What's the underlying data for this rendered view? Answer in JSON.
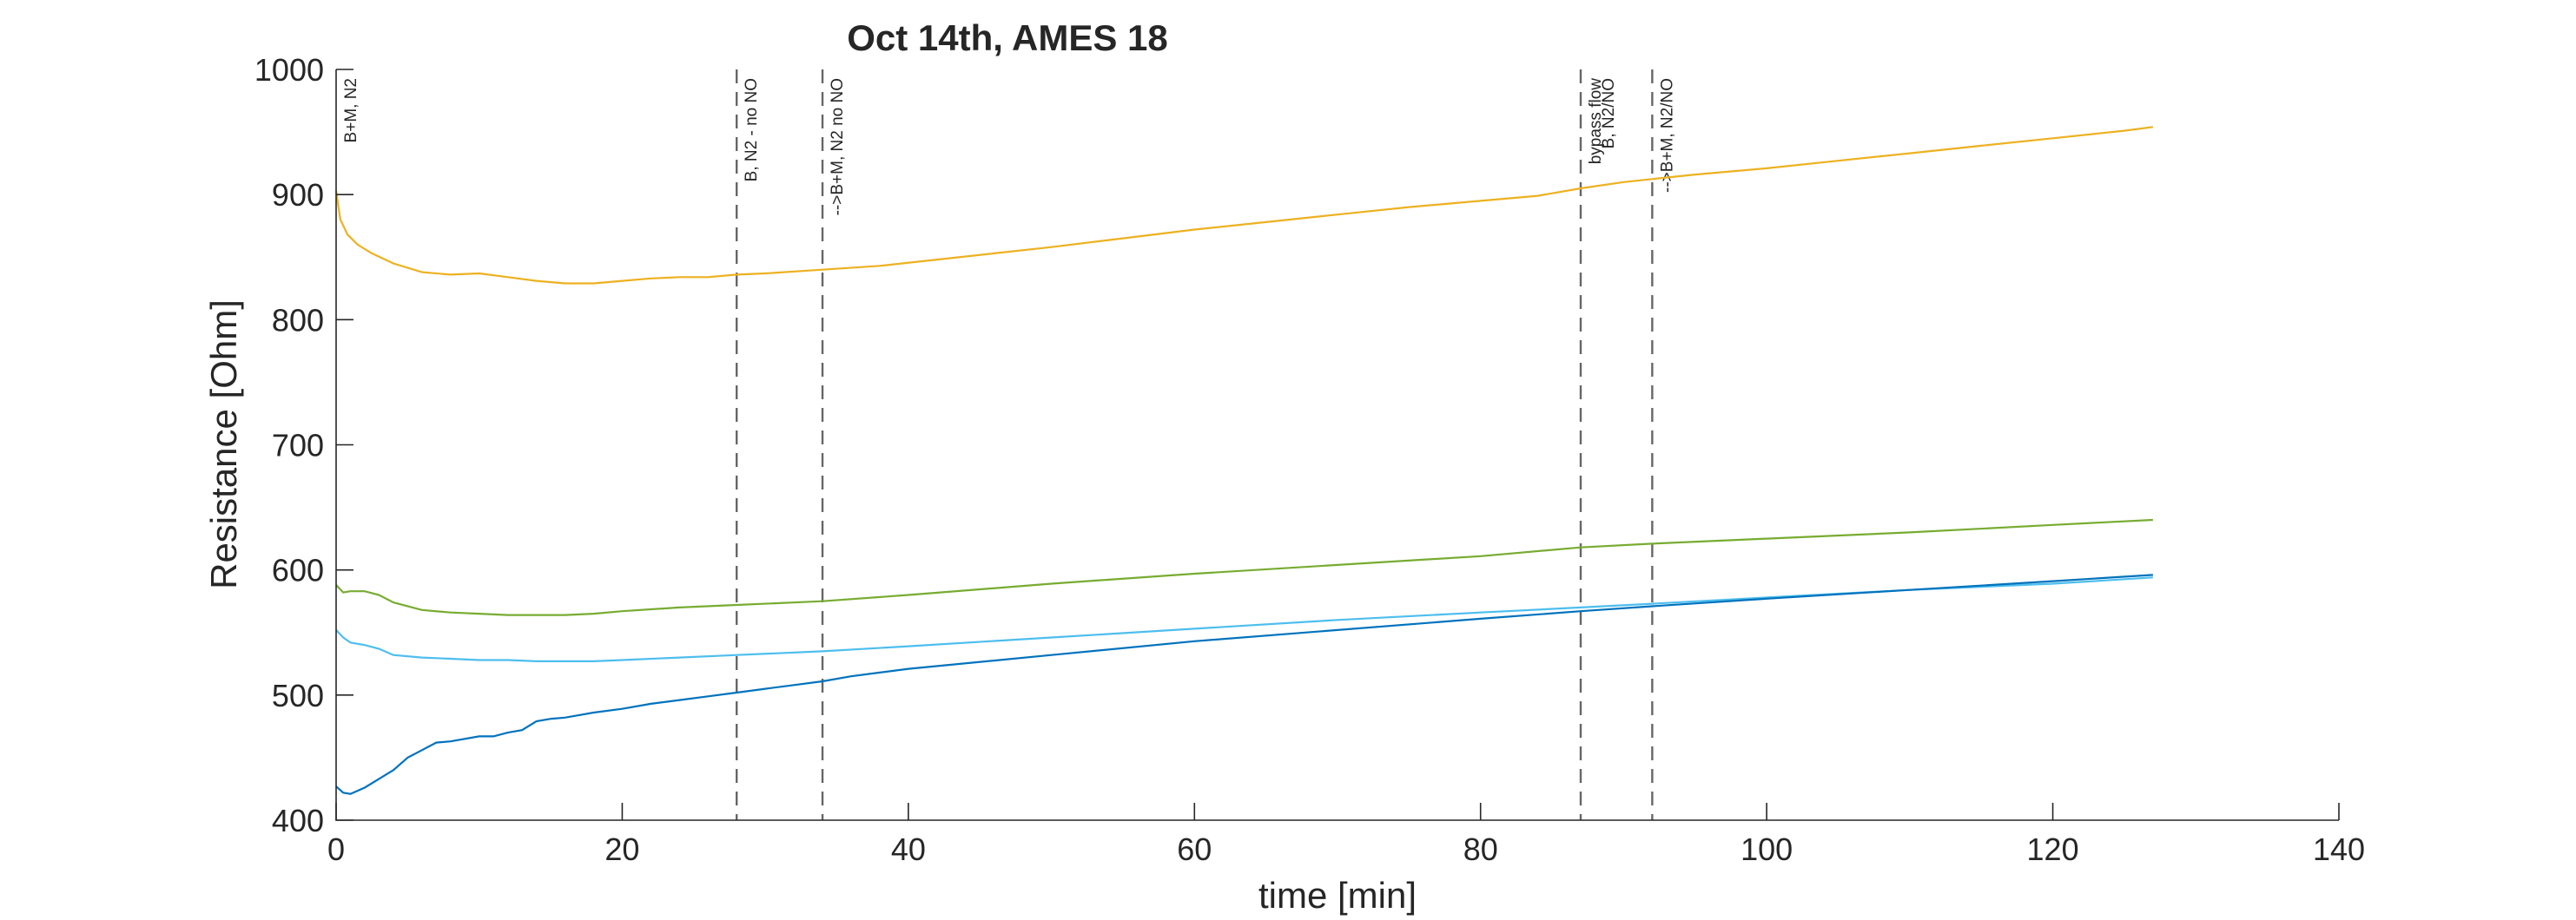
{
  "chart_data": {
    "type": "line",
    "title": "Oct 14th, AMES 18",
    "xlabel": "time [min]",
    "ylabel": "Resistance [Ohm]",
    "xlim": [
      0,
      140
    ],
    "ylim": [
      400,
      1000
    ],
    "xticks": [
      0,
      20,
      40,
      60,
      80,
      100,
      120,
      140
    ],
    "yticks": [
      400,
      500,
      600,
      700,
      800,
      900,
      1000
    ],
    "grid": false,
    "legend": "none",
    "box": "left-bottom",
    "annotations": [
      {
        "x": 0,
        "text": "B+M, N2",
        "dashed": false
      },
      {
        "x": 28,
        "text": "B, N2 - no NO",
        "dashed": true
      },
      {
        "x": 34,
        "text": "-->B+M, N2 no NO",
        "dashed": true
      },
      {
        "x": 87,
        "text": "bypass flow",
        "dashed": true
      },
      {
        "x": 87.9,
        "text": "B, N2/NO",
        "dashed": false
      },
      {
        "x": 92,
        "text": "-->B+M, N2/NO",
        "dashed": true
      }
    ],
    "series": [
      {
        "color": "#EDB120",
        "x": [
          0,
          0.3,
          0.8,
          1.5,
          2.5,
          4,
          6,
          8,
          10,
          12,
          14,
          16,
          18,
          20,
          22,
          24,
          26,
          28,
          30,
          34,
          38,
          42,
          46,
          50,
          55,
          60,
          65,
          70,
          75,
          80,
          84,
          87,
          90,
          95,
          100,
          105,
          110,
          115,
          120,
          125,
          127
        ],
        "y": [
          903,
          880,
          868,
          860,
          853,
          845,
          838,
          836,
          837,
          834,
          831,
          829,
          829,
          831,
          833,
          834,
          834,
          836,
          837,
          840,
          843,
          848,
          853,
          858,
          865,
          872,
          878,
          884,
          890,
          895,
          899,
          905,
          910,
          916,
          921,
          927,
          933,
          939,
          945,
          951,
          954
        ]
      },
      {
        "color": "#77AC30",
        "x": [
          0,
          0.5,
          1,
          2,
          3,
          4,
          6,
          8,
          10,
          12,
          14,
          16,
          18,
          20,
          24,
          28,
          34,
          40,
          50,
          60,
          70,
          80,
          87,
          92,
          100,
          110,
          120,
          127
        ],
        "y": [
          588,
          582,
          583,
          583,
          580,
          574,
          568,
          566,
          565,
          564,
          564,
          564,
          565,
          567,
          570,
          572,
          575,
          580,
          589,
          597,
          604,
          611,
          618,
          621,
          625,
          630,
          636,
          640
        ]
      },
      {
        "color": "#4DBEEE",
        "x": [
          0,
          0.5,
          1,
          2,
          3,
          4,
          6,
          8,
          10,
          12,
          14,
          16,
          18,
          20,
          24,
          28,
          34,
          40,
          50,
          60,
          70,
          80,
          87,
          92,
          100,
          110,
          120,
          127
        ],
        "y": [
          552,
          546,
          542,
          540,
          537,
          532,
          530,
          529,
          528,
          528,
          527,
          527,
          527,
          528,
          530,
          532,
          535,
          539,
          546,
          553,
          560,
          566,
          570,
          573,
          578,
          584,
          589,
          594
        ]
      },
      {
        "color": "#0072BD",
        "x": [
          0,
          0.5,
          1,
          2,
          3,
          4,
          5,
          6,
          7,
          8,
          10,
          11,
          12,
          13,
          14,
          15,
          16,
          17,
          18,
          20,
          22,
          24,
          26,
          28,
          30,
          32,
          34,
          36,
          38,
          40,
          50,
          60,
          70,
          80,
          87,
          92,
          100,
          110,
          120,
          127
        ],
        "y": [
          427,
          422,
          421,
          426,
          433,
          440,
          450,
          456,
          462,
          463,
          467,
          467,
          470,
          472,
          479,
          481,
          482,
          484,
          486,
          489,
          493,
          496,
          499,
          502,
          505,
          508,
          511,
          515,
          518,
          521,
          532,
          543,
          552,
          561,
          567,
          571,
          577,
          584,
          591,
          596
        ]
      }
    ]
  }
}
